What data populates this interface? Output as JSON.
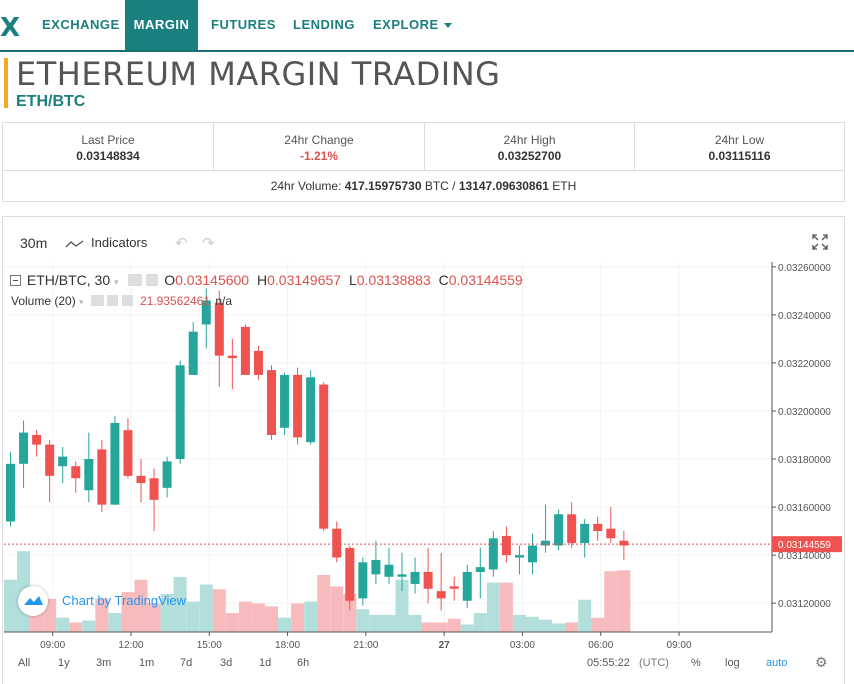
{
  "nav": {
    "logo": "X",
    "items": [
      {
        "label": "EXCHANGE",
        "active": false
      },
      {
        "label": "MARGIN",
        "active": true
      },
      {
        "label": "FUTURES",
        "active": false
      },
      {
        "label": "LENDING",
        "active": false
      },
      {
        "label": "EXPLORE",
        "active": false,
        "dropdown": true
      }
    ]
  },
  "page": {
    "title": "ETHEREUM MARGIN TRADING",
    "pair": "ETH/BTC"
  },
  "stats": {
    "last_price_label": "Last Price",
    "last_price": "0.03148834",
    "change_label": "24hr Change",
    "change": "-1.21%",
    "high_label": "24hr High",
    "high": "0.03252700",
    "low_label": "24hr Low",
    "low": "0.03115116",
    "volume_label": "24hr Volume:",
    "volume_btc": "417.15975730",
    "volume_btc_unit": "BTC /",
    "volume_eth": "13147.09630861",
    "volume_eth_unit": "ETH"
  },
  "toolbar": {
    "interval": "30m",
    "indicators": "Indicators"
  },
  "legend": {
    "symbol": "ETH/BTC, 30",
    "o_label": "O",
    "o": "0.03145600",
    "h_label": "H",
    "h": "0.03149657",
    "l_label": "L",
    "l": "0.03138883",
    "c_label": "C",
    "c": "0.03144559",
    "volume_label": "Volume (20)",
    "volume_value": "21.93562461",
    "volume_na": "n/a"
  },
  "colors": {
    "up": "#26a69a",
    "down": "#ef5350",
    "up_vol": "#b2dfdb",
    "down_vol": "#f8bbbd",
    "accent": "#1b7f7f",
    "title_bar": "#f5a623"
  },
  "chart_data": {
    "type": "candlestick",
    "price_axis": {
      "ticks": [
        "0.03260000",
        "0.03240000",
        "0.03220000",
        "0.03200000",
        "0.03180000",
        "0.03160000",
        "0.03140000",
        "0.03120000"
      ],
      "last_price_label": "0.03144559",
      "last_price": 0.03144559
    },
    "time_axis": {
      "ticks": [
        "09:00",
        "12:00",
        "15:00",
        "18:00",
        "21:00",
        "27",
        "03:00",
        "06:00",
        "09:00"
      ]
    },
    "candles": [
      {
        "o": 0.03154,
        "h": 0.03183,
        "l": 0.03152,
        "c": 0.03178
      },
      {
        "o": 0.03178,
        "h": 0.03196,
        "l": 0.03168,
        "c": 0.03191
      },
      {
        "o": 0.0319,
        "h": 0.03192,
        "l": 0.03181,
        "c": 0.03186
      },
      {
        "o": 0.03186,
        "h": 0.03188,
        "l": 0.03162,
        "c": 0.03173
      },
      {
        "o": 0.03177,
        "h": 0.03185,
        "l": 0.0317,
        "c": 0.03181
      },
      {
        "o": 0.03177,
        "h": 0.03179,
        "l": 0.03166,
        "c": 0.03172
      },
      {
        "o": 0.03167,
        "h": 0.03191,
        "l": 0.03162,
        "c": 0.0318
      },
      {
        "o": 0.03184,
        "h": 0.03188,
        "l": 0.03158,
        "c": 0.03161
      },
      {
        "o": 0.03161,
        "h": 0.03198,
        "l": 0.03161,
        "c": 0.03195
      },
      {
        "o": 0.03192,
        "h": 0.03197,
        "l": 0.03172,
        "c": 0.03173
      },
      {
        "o": 0.03173,
        "h": 0.0318,
        "l": 0.03162,
        "c": 0.0317
      },
      {
        "o": 0.03172,
        "h": 0.03176,
        "l": 0.0315,
        "c": 0.03163
      },
      {
        "o": 0.03168,
        "h": 0.03181,
        "l": 0.03164,
        "c": 0.03179
      },
      {
        "o": 0.0318,
        "h": 0.03221,
        "l": 0.03178,
        "c": 0.03219
      },
      {
        "o": 0.03215,
        "h": 0.03237,
        "l": 0.03215,
        "c": 0.03233
      },
      {
        "o": 0.03236,
        "h": 0.03251,
        "l": 0.03226,
        "c": 0.03246
      },
      {
        "o": 0.03245,
        "h": 0.0325,
        "l": 0.0321,
        "c": 0.03223
      },
      {
        "o": 0.03223,
        "h": 0.0323,
        "l": 0.03209,
        "c": 0.03222
      },
      {
        "o": 0.03235,
        "h": 0.03236,
        "l": 0.03216,
        "c": 0.03215
      },
      {
        "o": 0.03225,
        "h": 0.03227,
        "l": 0.03213,
        "c": 0.03215
      },
      {
        "o": 0.03217,
        "h": 0.03219,
        "l": 0.03188,
        "c": 0.0319
      },
      {
        "o": 0.03193,
        "h": 0.03216,
        "l": 0.0319,
        "c": 0.03215
      },
      {
        "o": 0.03215,
        "h": 0.03218,
        "l": 0.03186,
        "c": 0.03189
      },
      {
        "o": 0.03187,
        "h": 0.03217,
        "l": 0.03186,
        "c": 0.03214
      },
      {
        "o": 0.03211,
        "h": 0.03212,
        "l": 0.0315,
        "c": 0.03151
      },
      {
        "o": 0.03151,
        "h": 0.03154,
        "l": 0.03137,
        "c": 0.03139
      },
      {
        "o": 0.03143,
        "h": 0.03144,
        "l": 0.03117,
        "c": 0.03121
      },
      {
        "o": 0.03122,
        "h": 0.03139,
        "l": 0.03119,
        "c": 0.03137
      },
      {
        "o": 0.03132,
        "h": 0.03146,
        "l": 0.03128,
        "c": 0.03138
      },
      {
        "o": 0.03131,
        "h": 0.03143,
        "l": 0.03128,
        "c": 0.03136
      },
      {
        "o": 0.03131,
        "h": 0.03141,
        "l": 0.03125,
        "c": 0.03132
      },
      {
        "o": 0.03128,
        "h": 0.03139,
        "l": 0.03124,
        "c": 0.03133
      },
      {
        "o": 0.03133,
        "h": 0.03143,
        "l": 0.0312,
        "c": 0.03126
      },
      {
        "o": 0.03125,
        "h": 0.03141,
        "l": 0.03117,
        "c": 0.03122
      },
      {
        "o": 0.03127,
        "h": 0.03131,
        "l": 0.03121,
        "c": 0.03126
      },
      {
        "o": 0.03121,
        "h": 0.03136,
        "l": 0.03118,
        "c": 0.03133
      },
      {
        "o": 0.03133,
        "h": 0.03143,
        "l": 0.03122,
        "c": 0.03135
      },
      {
        "o": 0.03134,
        "h": 0.0315,
        "l": 0.03131,
        "c": 0.03147
      },
      {
        "o": 0.03148,
        "h": 0.03152,
        "l": 0.03137,
        "c": 0.0314
      },
      {
        "o": 0.03139,
        "h": 0.03144,
        "l": 0.03132,
        "c": 0.0314
      },
      {
        "o": 0.03137,
        "h": 0.03149,
        "l": 0.03132,
        "c": 0.03144
      },
      {
        "o": 0.03144,
        "h": 0.03161,
        "l": 0.03141,
        "c": 0.03146
      },
      {
        "o": 0.03144,
        "h": 0.03159,
        "l": 0.03142,
        "c": 0.03157
      },
      {
        "o": 0.03157,
        "h": 0.03162,
        "l": 0.03143,
        "c": 0.03145
      },
      {
        "o": 0.03145,
        "h": 0.03155,
        "l": 0.03139,
        "c": 0.03153
      },
      {
        "o": 0.03153,
        "h": 0.03156,
        "l": 0.03146,
        "c": 0.0315
      },
      {
        "o": 0.03151,
        "h": 0.0316,
        "l": 0.03145,
        "c": 0.03147
      },
      {
        "o": 0.03146,
        "h": 0.0315,
        "l": 0.03138,
        "c": 0.03144
      }
    ],
    "volume": [
      0.55,
      0.85,
      0.3,
      0.35,
      0.15,
      0.1,
      0.12,
      0.35,
      0.2,
      0.42,
      0.55,
      0.3,
      0.4,
      0.58,
      0.32,
      0.5,
      0.45,
      0.2,
      0.32,
      0.3,
      0.27,
      0.15,
      0.3,
      0.32,
      0.6,
      0.48,
      0.4,
      0.24,
      0.18,
      0.18,
      0.55,
      0.18,
      0.1,
      0.1,
      0.14,
      0.08,
      0.2,
      0.52,
      0.52,
      0.18,
      0.16,
      0.13,
      0.09,
      0.1,
      0.34,
      0.15,
      0.64,
      0.65
    ]
  },
  "bottom": {
    "ranges": [
      "All",
      "1y",
      "3m",
      "1m",
      "7d",
      "3d",
      "1d",
      "6h"
    ],
    "time": "05:55:22",
    "tz": "(UTC)",
    "pct": "%",
    "log": "log",
    "auto": "auto"
  },
  "tradingview": {
    "text": "Chart by TradingView"
  }
}
